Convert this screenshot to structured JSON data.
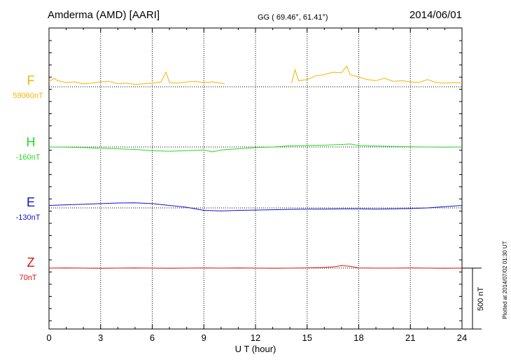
{
  "header": {
    "station": "Amderma (AMD)  [AARI]",
    "coords": "GG ( 69.46°,  61.41°)",
    "date": "2014/06/01"
  },
  "axes": {
    "xlabel": "U T (hour)",
    "xticks": [
      "0",
      "3",
      "6",
      "9",
      "12",
      "15",
      "18",
      "21",
      "24"
    ]
  },
  "scale_label": "500 nT",
  "plotted_note": "Plotted at 2014/07/02 01:30 UT",
  "colors": {
    "F": "#f5b400",
    "H": "#22dd22",
    "E": "#1111cc",
    "Z": "#dd1111",
    "grid": "#000000"
  },
  "chart_data": {
    "type": "line",
    "title": "",
    "xlabel": "U T (hour)",
    "xlim": [
      0,
      24
    ],
    "units": "nT",
    "scale_bar_nT": 500,
    "grid": true,
    "series": [
      {
        "name": "F",
        "baseline_label": "59060nT",
        "baseline_nT": 59060,
        "gaps": [
          [
            10.2,
            14.1
          ]
        ],
        "x": [
          0,
          0.3,
          0.5,
          1,
          1.5,
          2,
          2.5,
          3,
          3.5,
          4,
          4.5,
          5,
          5.5,
          6,
          6.5,
          6.8,
          7,
          7.5,
          8,
          8.5,
          9,
          9.5,
          10,
          10.2,
          14.1,
          14.3,
          14.5,
          15,
          15.5,
          16,
          16.5,
          17,
          17.3,
          17.5,
          18,
          18.5,
          19,
          19.5,
          20,
          20.5,
          21,
          21.5,
          22,
          22.5,
          23,
          23.5,
          24
        ],
        "y": [
          59100,
          59130,
          59110,
          59095,
          59100,
          59085,
          59090,
          59100,
          59105,
          59085,
          59090,
          59080,
          59085,
          59090,
          59100,
          59180,
          59095,
          59090,
          59100,
          59105,
          59095,
          59100,
          59090,
          59085,
          59090,
          59200,
          59110,
          59120,
          59150,
          59160,
          59180,
          59175,
          59230,
          59160,
          59140,
          59120,
          59110,
          59130,
          59105,
          59110,
          59100,
          59095,
          59120,
          59095,
          59090,
          59095,
          59090
        ]
      },
      {
        "name": "H",
        "baseline_label": "-160nT",
        "baseline_nT": -160,
        "x": [
          0,
          1,
          2,
          3,
          4,
          5,
          6,
          7,
          8,
          9,
          9.5,
          10,
          11,
          12,
          13,
          14,
          15,
          16,
          17,
          17.5,
          18,
          19,
          20,
          21,
          22,
          23,
          24
        ],
        "y": [
          -160,
          -162,
          -165,
          -170,
          -175,
          -180,
          -190,
          -195,
          -190,
          -185,
          -200,
          -185,
          -175,
          -165,
          -160,
          -150,
          -148,
          -145,
          -140,
          -135,
          -148,
          -152,
          -155,
          -158,
          -160,
          -162,
          -160
        ]
      },
      {
        "name": "E",
        "baseline_label": "-130nT",
        "baseline_nT": -130,
        "x": [
          0,
          1,
          2,
          3,
          4,
          5,
          6,
          7,
          8,
          9,
          10,
          11,
          12,
          13,
          14,
          15,
          16,
          17,
          18,
          19,
          20,
          21,
          22,
          23,
          24
        ],
        "y": [
          -110,
          -105,
          -100,
          -95,
          -90,
          -88,
          -95,
          -110,
          -125,
          -150,
          -155,
          -150,
          -148,
          -145,
          -142,
          -140,
          -140,
          -138,
          -138,
          -140,
          -138,
          -135,
          -130,
          -120,
          -110
        ]
      },
      {
        "name": "Z",
        "baseline_label": "70nT",
        "baseline_nT": 70,
        "x": [
          0,
          1,
          2,
          3,
          4,
          5,
          6,
          7,
          8,
          9,
          10,
          11,
          12,
          13,
          14,
          15,
          16,
          16.5,
          17,
          17.5,
          18,
          19,
          20,
          21,
          22,
          23,
          24
        ],
        "y": [
          70,
          72,
          70,
          68,
          70,
          72,
          70,
          68,
          70,
          71,
          70,
          72,
          70,
          69,
          70,
          72,
          75,
          80,
          90,
          85,
          72,
          70,
          70,
          71,
          70,
          69,
          70
        ]
      }
    ]
  }
}
